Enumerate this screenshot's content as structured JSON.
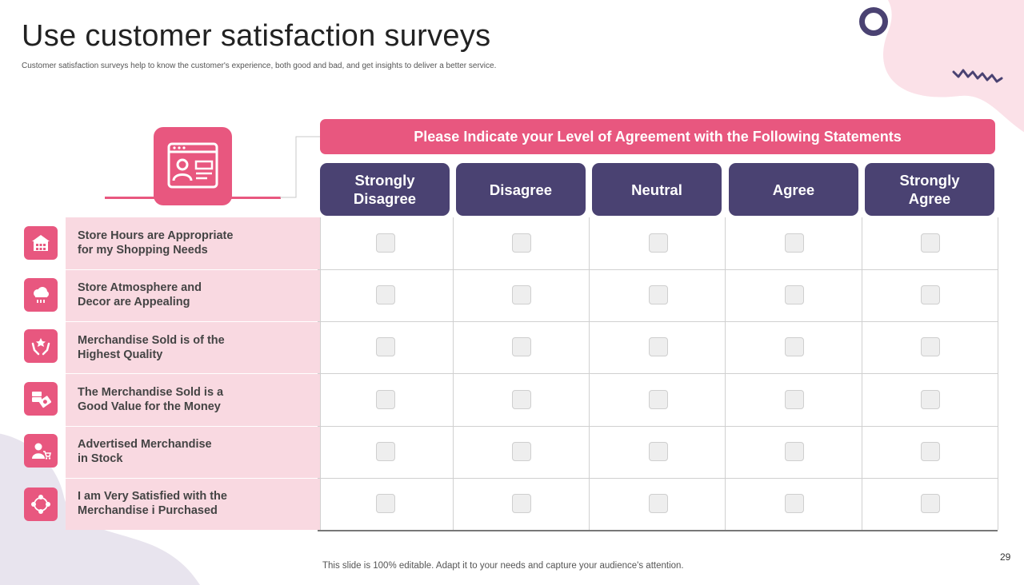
{
  "slide": {
    "title": "Use customer satisfaction surveys",
    "subtitle": "Customer satisfaction surveys help to know the customer's experience, both good and bad, and get insights to deliver a better service.",
    "footer": "This slide is 100% editable. Adapt it to your needs and capture your audience's attention.",
    "page_number": "29"
  },
  "colors": {
    "pink": "#e8577f",
    "navy": "#4a4272",
    "label_bg": "#f9d9e1"
  },
  "survey": {
    "header_icon": "survey-form-icon",
    "banner": "Please Indicate your Level of Agreement with the Following Statements",
    "columns": [
      {
        "label": "Strongly\nDisagree"
      },
      {
        "label": "Disagree"
      },
      {
        "label": "Neutral"
      },
      {
        "label": "Agree"
      },
      {
        "label": "Strongly\nAgree"
      }
    ],
    "statements": [
      {
        "text": "Store Hours are Appropriate\nfor my  Shopping Needs",
        "icon": "store-icon"
      },
      {
        "text": "Store Atmosphere and\nDecor are Appealing",
        "icon": "weather-icon"
      },
      {
        "text": "Merchandise Sold is of the\nHighest Quality",
        "icon": "quality-hands-icon"
      },
      {
        "text": "The Merchandise Sold is a\nGood Value for the Money",
        "icon": "money-icon"
      },
      {
        "text": "Advertised Merchandise\nin  Stock",
        "icon": "user-cart-icon"
      },
      {
        "text": "I am  Very  Satisfied with the\nMerchandise i Purchased",
        "icon": "network-users-icon"
      }
    ]
  }
}
